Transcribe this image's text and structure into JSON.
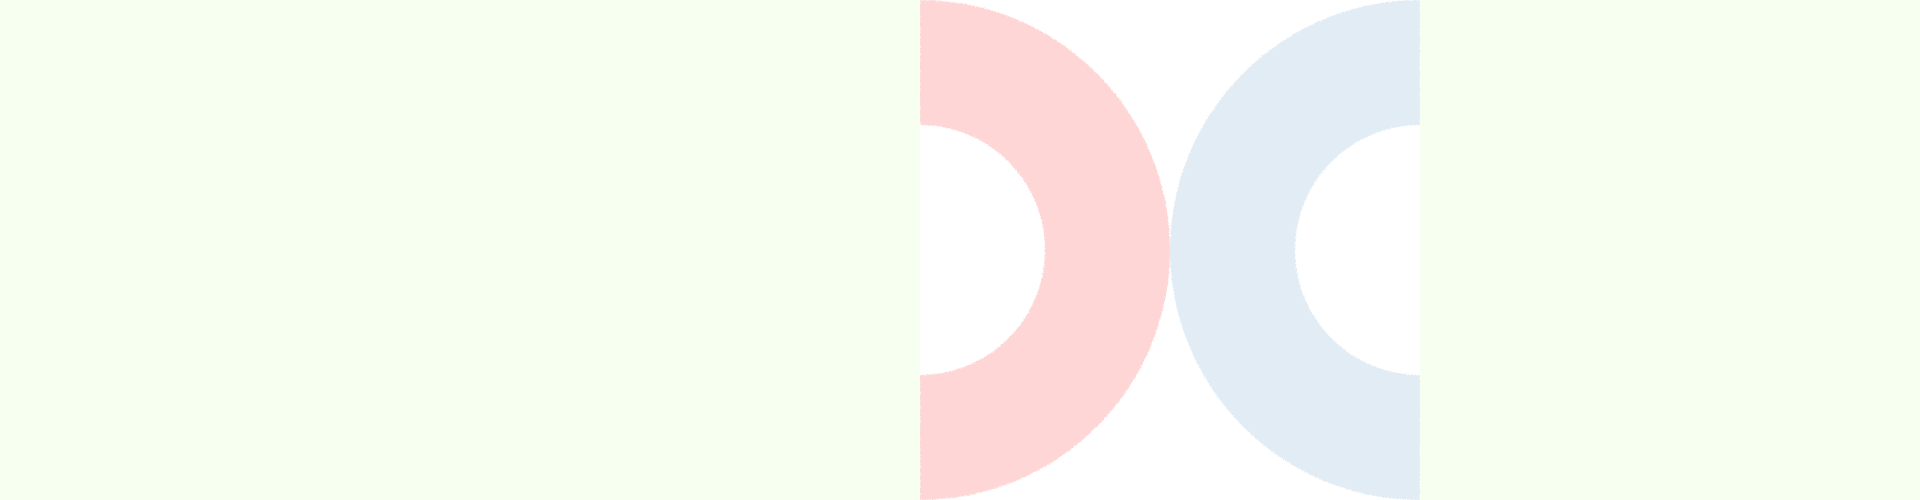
{
  "colors": {
    "side_background": "#f7fff0",
    "center_background": "#ffffff",
    "left_ring": "#ffd6d6",
    "right_ring": "#e2ecf5"
  },
  "rings": [
    {
      "name": "left-half-ring",
      "color_key": "left_ring"
    },
    {
      "name": "right-half-ring",
      "color_key": "right_ring"
    }
  ]
}
